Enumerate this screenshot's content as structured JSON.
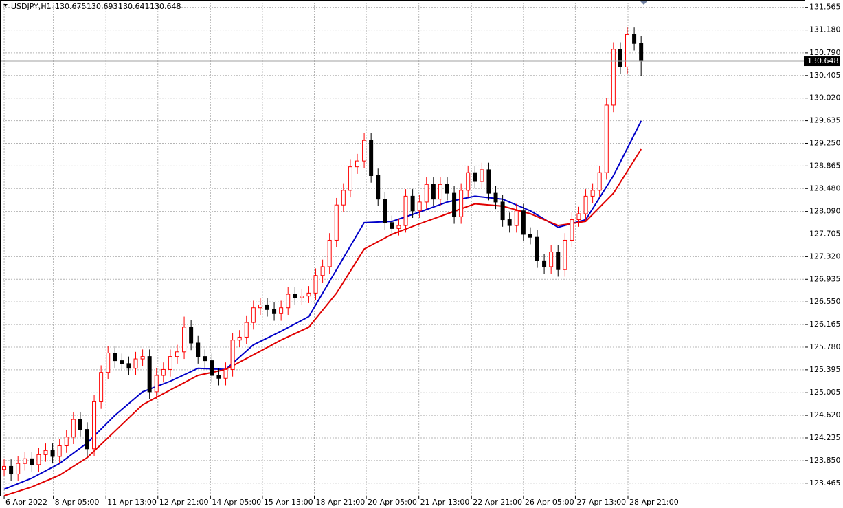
{
  "chart_data": {
    "type": "candlestick",
    "symbol": "USDJPY,H1",
    "info_ohlc": [
      130.675,
      130.693,
      130.641,
      130.648
    ],
    "current_price": 130.648,
    "up_color": "#ff0000",
    "down_color": "#000000",
    "grid": true,
    "xlim": [
      -0.6,
      115.7
    ],
    "ylim": [
      123.24,
      131.69
    ],
    "xticks": [
      {
        "value": 0,
        "label": "6 Apr 2022"
      },
      {
        "value": 7.1,
        "label": "8 Apr 05:00"
      },
      {
        "value": 14.7,
        "label": "11 Apr 13:00"
      },
      {
        "value": 22.2,
        "label": "12 Apr 21:00"
      },
      {
        "value": 29.8,
        "label": "14 Apr 05:00"
      },
      {
        "value": 37.3,
        "label": "15 Apr 13:00"
      },
      {
        "value": 44.8,
        "label": "18 Apr 21:00"
      },
      {
        "value": 52.3,
        "label": "20 Apr 05:00"
      },
      {
        "value": 59.9,
        "label": "21 Apr 13:00"
      },
      {
        "value": 67.5,
        "label": "22 Apr 21:00"
      },
      {
        "value": 75.0,
        "label": "26 Apr 05:00"
      },
      {
        "value": 82.5,
        "label": "27 Apr 13:00"
      },
      {
        "value": 90.1,
        "label": "28 Apr 21:00"
      }
    ],
    "yticks": [
      131.565,
      {
        "value": 131.18,
        "label": "131.180"
      },
      {
        "value": 130.79,
        "label": "130.790"
      },
      130.405,
      {
        "value": 130.02,
        "label": "130.020"
      },
      129.635,
      {
        "value": 129.25,
        "label": "129.250"
      },
      128.865,
      {
        "value": 128.48,
        "label": "128.480"
      },
      {
        "value": 128.09,
        "label": "128.090"
      },
      127.705,
      {
        "value": 127.32,
        "label": "127.320"
      },
      126.935,
      {
        "value": 126.55,
        "label": "126.550"
      },
      126.165,
      {
        "value": 125.78,
        "label": "125.780"
      },
      125.395,
      125.005,
      {
        "value": 124.62,
        "label": "124.620"
      },
      124.235,
      {
        "value": 123.85,
        "label": "123.850"
      },
      123.465
    ],
    "open": [
      123.7,
      123.75,
      123.62,
      123.8,
      123.88,
      123.78,
      123.95,
      124.02,
      123.92,
      124.1,
      124.25,
      124.55,
      124.38,
      124.05,
      124.85,
      125.35,
      125.68,
      125.55,
      125.5,
      125.42,
      125.58,
      125.62,
      125.02,
      125.3,
      125.4,
      125.62,
      125.7,
      126.12,
      125.85,
      125.62,
      125.55,
      125.3,
      125.25,
      125.4,
      125.9,
      125.95,
      126.2,
      126.45,
      126.5,
      126.42,
      126.35,
      126.45,
      126.68,
      126.62,
      126.65,
      126.7,
      127.0,
      127.15,
      127.6,
      128.2,
      128.45,
      128.85,
      128.95,
      129.3,
      128.7,
      128.3,
      127.9,
      127.8,
      127.85,
      128.35,
      128.1,
      128.25,
      128.55,
      128.3,
      128.55,
      128.4,
      128.0,
      128.45,
      128.75,
      128.6,
      128.8,
      128.4,
      128.25,
      127.95,
      127.85,
      128.1,
      127.7,
      127.65,
      127.25,
      127.15,
      127.4,
      127.1,
      127.6,
      127.95,
      128.05,
      128.35,
      128.45,
      128.75,
      129.9,
      130.85,
      130.55,
      131.1,
      130.95
    ],
    "high": [
      123.87,
      123.87,
      123.92,
      124.0,
      124.0,
      124.07,
      124.14,
      124.14,
      124.22,
      124.37,
      124.67,
      124.67,
      124.5,
      124.97,
      125.47,
      125.8,
      125.8,
      125.67,
      125.62,
      125.7,
      125.74,
      125.74,
      125.42,
      125.52,
      125.74,
      125.82,
      126.3,
      126.24,
      125.97,
      125.74,
      125.67,
      125.42,
      125.52,
      126.02,
      126.07,
      126.32,
      126.57,
      126.62,
      126.62,
      126.54,
      126.57,
      126.8,
      126.8,
      126.77,
      126.82,
      127.12,
      127.27,
      127.72,
      128.32,
      128.57,
      128.97,
      129.07,
      129.42,
      129.42,
      128.82,
      128.42,
      128.02,
      127.97,
      128.47,
      128.47,
      128.37,
      128.67,
      128.67,
      128.67,
      128.67,
      128.52,
      128.57,
      128.87,
      128.87,
      128.92,
      128.92,
      128.52,
      128.37,
      128.07,
      128.22,
      128.22,
      127.82,
      127.77,
      127.37,
      127.52,
      127.52,
      127.72,
      128.07,
      128.17,
      128.47,
      128.57,
      128.87,
      130.02,
      130.97,
      130.97,
      131.22,
      131.22,
      131.07
    ],
    "low": [
      123.58,
      123.5,
      123.5,
      123.68,
      123.66,
      123.66,
      123.83,
      123.8,
      123.8,
      123.98,
      124.13,
      124.26,
      123.93,
      123.93,
      124.73,
      125.23,
      125.43,
      125.38,
      125.3,
      125.3,
      125.46,
      124.9,
      124.9,
      125.18,
      125.28,
      125.5,
      125.58,
      125.73,
      125.5,
      125.43,
      125.18,
      125.13,
      125.13,
      125.28,
      125.78,
      125.83,
      126.08,
      126.33,
      126.3,
      126.23,
      126.23,
      126.33,
      126.5,
      126.5,
      126.53,
      126.58,
      126.88,
      127.03,
      127.48,
      128.08,
      128.33,
      128.73,
      128.83,
      128.58,
      128.18,
      127.78,
      127.68,
      127.68,
      127.73,
      127.98,
      127.98,
      128.13,
      128.18,
      128.18,
      128.28,
      127.88,
      127.88,
      128.33,
      128.48,
      128.48,
      128.28,
      128.13,
      127.83,
      127.73,
      127.73,
      127.58,
      127.53,
      127.13,
      127.03,
      127.03,
      126.98,
      126.98,
      127.48,
      127.83,
      127.93,
      128.23,
      128.33,
      128.63,
      129.78,
      130.43,
      130.43,
      130.83,
      130.4
    ],
    "close": [
      123.75,
      123.62,
      123.8,
      123.88,
      123.78,
      123.95,
      124.02,
      123.92,
      124.1,
      124.25,
      124.55,
      124.38,
      124.05,
      124.85,
      125.35,
      125.68,
      125.55,
      125.5,
      125.42,
      125.58,
      125.62,
      125.02,
      125.3,
      125.4,
      125.62,
      125.7,
      126.12,
      125.85,
      125.62,
      125.55,
      125.3,
      125.25,
      125.4,
      125.9,
      125.95,
      126.2,
      126.45,
      126.5,
      126.42,
      126.35,
      126.45,
      126.68,
      126.62,
      126.65,
      126.7,
      127.0,
      127.15,
      127.6,
      128.2,
      128.45,
      128.85,
      128.95,
      129.3,
      128.7,
      128.3,
      127.9,
      127.8,
      127.85,
      128.35,
      128.1,
      128.25,
      128.55,
      128.3,
      128.55,
      128.4,
      128.0,
      128.45,
      128.75,
      128.6,
      128.8,
      128.4,
      128.25,
      127.95,
      127.85,
      128.1,
      127.7,
      127.65,
      127.25,
      127.15,
      127.4,
      127.1,
      127.6,
      127.95,
      128.05,
      128.35,
      128.45,
      128.75,
      129.9,
      130.85,
      130.55,
      131.1,
      130.95,
      130.648
    ],
    "series": [
      {
        "color": "#0000c8",
        "x": [
          0,
          4,
          8,
          12,
          16,
          20,
          24,
          28,
          32,
          36,
          40,
          44,
          48,
          52,
          56,
          60,
          64,
          68,
          72,
          76,
          80,
          84,
          88,
          92
        ],
        "values": [
          123.36,
          123.55,
          123.8,
          124.15,
          124.62,
          125.02,
          125.2,
          125.42,
          125.4,
          125.82,
          126.05,
          126.3,
          127.1,
          127.9,
          127.92,
          128.08,
          128.25,
          128.35,
          128.3,
          128.1,
          127.82,
          127.95,
          128.7,
          129.63
        ]
      },
      {
        "color": "#e00000",
        "x": [
          0,
          4,
          8,
          12,
          16,
          20,
          24,
          28,
          32,
          36,
          40,
          44,
          48,
          52,
          56,
          60,
          64,
          68,
          72,
          76,
          80,
          84,
          88,
          92
        ],
        "values": [
          123.25,
          123.4,
          123.6,
          123.9,
          124.35,
          124.8,
          125.05,
          125.3,
          125.4,
          125.65,
          125.9,
          126.12,
          126.7,
          127.45,
          127.7,
          127.88,
          128.05,
          128.22,
          128.18,
          128.05,
          127.85,
          127.92,
          128.4,
          129.15
        ]
      }
    ]
  }
}
